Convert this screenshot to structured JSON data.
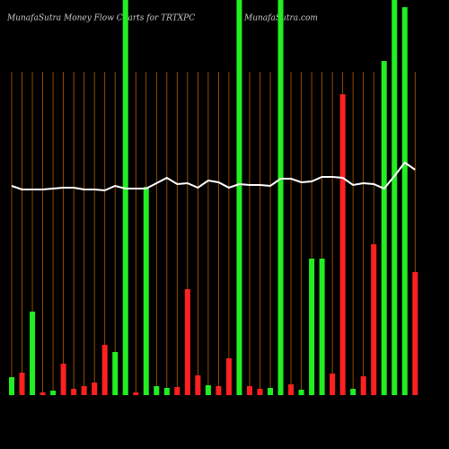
{
  "chart_data": {
    "type": "bar",
    "title": "MunafaSutra  Money Flow  Charts for TRTXPC",
    "subtitle": "MunafaSutra.com",
    "categories": [
      null,
      null,
      null,
      null,
      null,
      null,
      null,
      null,
      null,
      null,
      null,
      null,
      null,
      null,
      null,
      null,
      null,
      null,
      null,
      null,
      null,
      null,
      null,
      null,
      null,
      null,
      null,
      null,
      null,
      null,
      null,
      null,
      null,
      null,
      null,
      null,
      null,
      null,
      null,
      null
    ],
    "values": [
      20,
      25,
      93,
      3,
      5,
      35,
      7,
      10,
      14,
      56,
      48,
      460,
      3,
      232,
      10,
      8,
      9,
      118,
      22,
      11,
      10,
      41,
      460,
      10,
      7,
      8,
      460,
      12,
      6,
      152,
      152,
      24,
      335,
      7,
      21,
      168,
      372,
      460,
      432,
      137
    ],
    "colors": [
      "#22ee22",
      "#ff2020",
      "#22ee22",
      "#ff2020",
      "#22ee22",
      "#ff2020",
      "#ff2020",
      "#ff2020",
      "#ff2020",
      "#ff2020",
      "#22ee22",
      "#22ee22",
      "#ff2020",
      "#22ee22",
      "#22ee22",
      "#22ee22",
      "#ff2020",
      "#ff2020",
      "#ff2020",
      "#22ee22",
      "#ff2020",
      "#ff2020",
      "#22ee22",
      "#ff2020",
      "#ff2020",
      "#22ee22",
      "#22ee22",
      "#ff2020",
      "#22ee22",
      "#22ee22",
      "#22ee22",
      "#ff2020",
      "#ff2020",
      "#22ee22",
      "#ff2020",
      "#ff2020",
      "#22ee22",
      "#22ee22",
      "#22ee22",
      "#ff2020"
    ],
    "line": {
      "color": "#ffffff",
      "values": [
        233,
        229,
        229,
        229,
        230,
        231,
        231,
        229,
        229,
        228,
        233,
        230,
        230,
        230,
        236,
        242,
        235,
        236,
        231,
        239,
        237,
        231,
        235,
        234,
        234,
        233,
        241,
        241,
        237,
        238,
        243,
        243,
        242,
        234,
        236,
        235,
        230,
        244,
        259,
        251
      ]
    },
    "ylim": [
      0,
      440
    ],
    "grid_color": "#b85c00"
  }
}
